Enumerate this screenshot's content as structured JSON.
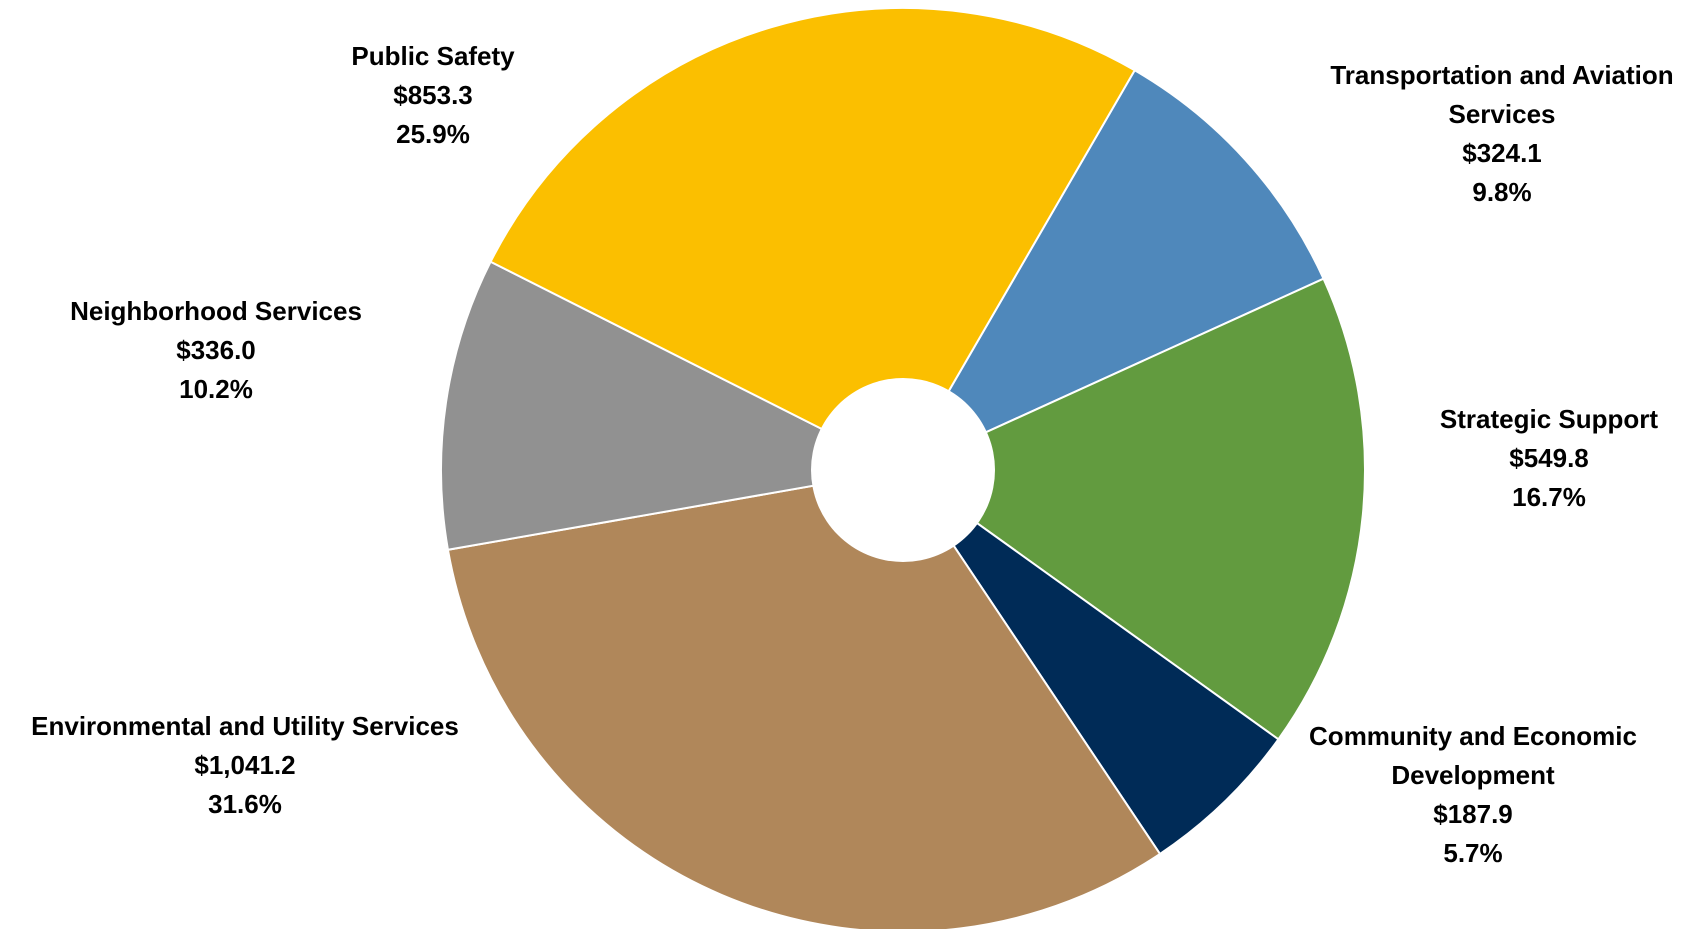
{
  "chart_data": {
    "type": "pie",
    "donut": true,
    "unit_note": "",
    "slices": [
      {
        "name": "Transportation and Aviation Services",
        "label_lines": [
          "Transportation and Aviation",
          "Services"
        ],
        "value": 324.1,
        "value_text": "$324.1",
        "percent_text": "9.8%",
        "color": "#4F88BB"
      },
      {
        "name": "Strategic Support",
        "label_lines": [
          "Strategic Support"
        ],
        "value": 549.8,
        "value_text": "$549.8",
        "percent_text": "16.7%",
        "color": "#629B3F"
      },
      {
        "name": "Community and Economic Development",
        "label_lines": [
          "Community and Economic",
          "Development"
        ],
        "value": 187.9,
        "value_text": "$187.9",
        "percent_text": "5.7%",
        "color": "#002B57"
      },
      {
        "name": "Environmental and Utility Services",
        "label_lines": [
          "Environmental and Utility Services"
        ],
        "value": 1041.2,
        "value_text": "$1,041.2",
        "percent_text": "31.6%",
        "color": "#B0875A"
      },
      {
        "name": "Neighborhood Services",
        "label_lines": [
          "Neighborhood Services"
        ],
        "value": 336.0,
        "value_text": "$336.0",
        "percent_text": "10.2%",
        "color": "#919191"
      },
      {
        "name": "Public Safety",
        "label_lines": [
          "Public Safety"
        ],
        "value": 853.3,
        "value_text": "$853.3",
        "percent_text": "25.9%",
        "color": "#FBBF00"
      }
    ]
  }
}
